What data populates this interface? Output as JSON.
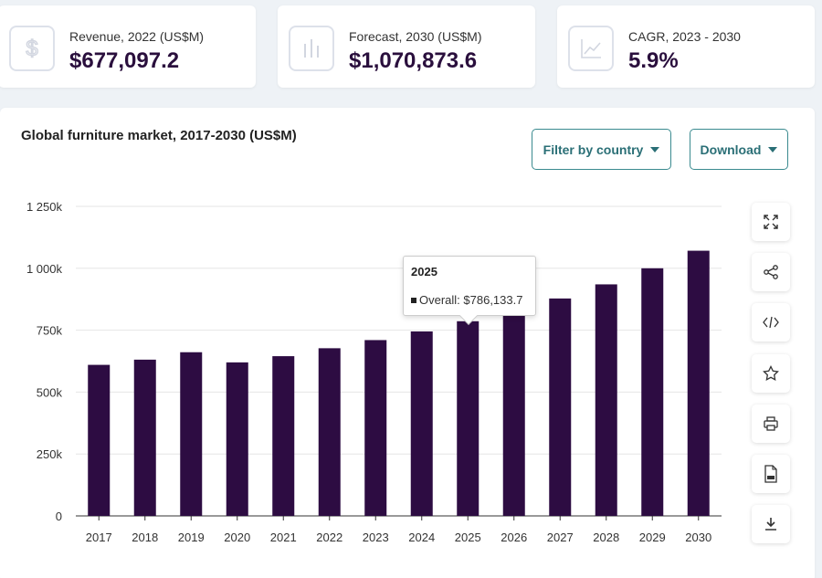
{
  "stats": [
    {
      "label": "Revenue, 2022 (US$M)",
      "value": "$677,097.2",
      "icon": "dollar-icon"
    },
    {
      "label": "Forecast, 2030 (US$M)",
      "value": "$1,070,873.6",
      "icon": "bar-chart-icon"
    },
    {
      "label": "CAGR, 2023 - 2030",
      "value": "5.9%",
      "icon": "trend-chart-icon"
    }
  ],
  "panel": {
    "title": "Global furniture market, 2017-2030 (US$M)",
    "filter_label": "Filter by country",
    "download_label": "Download"
  },
  "tools": [
    "fullscreen-icon",
    "share-icon",
    "embed-code-icon",
    "star-icon",
    "print-icon",
    "xls-file-icon",
    "download-icon"
  ],
  "tooltip": {
    "title": "2025",
    "row": "Overall: $786,133.7"
  },
  "colors": {
    "bar": "#2d0c42",
    "accent": "#2a6f76"
  },
  "chart_data": {
    "type": "bar",
    "title": "Global furniture market, 2017-2030 (US$M)",
    "categories": [
      "2017",
      "2018",
      "2019",
      "2020",
      "2021",
      "2022",
      "2023",
      "2024",
      "2025",
      "2026",
      "2027",
      "2028",
      "2029",
      "2030"
    ],
    "values": [
      610000,
      631000,
      661000,
      620000,
      645000,
      677097.2,
      710000,
      745000,
      786133.7,
      830000,
      878000,
      935000,
      1000000,
      1070873.6
    ],
    "ylim": [
      0,
      1250000
    ],
    "yticks": [
      0,
      250000,
      500000,
      750000,
      1000000,
      1250000
    ],
    "ytick_labels": [
      "0",
      "250k",
      "500k",
      "750k",
      "1 000k",
      "1 250k"
    ],
    "grid": true,
    "legend": "none"
  }
}
